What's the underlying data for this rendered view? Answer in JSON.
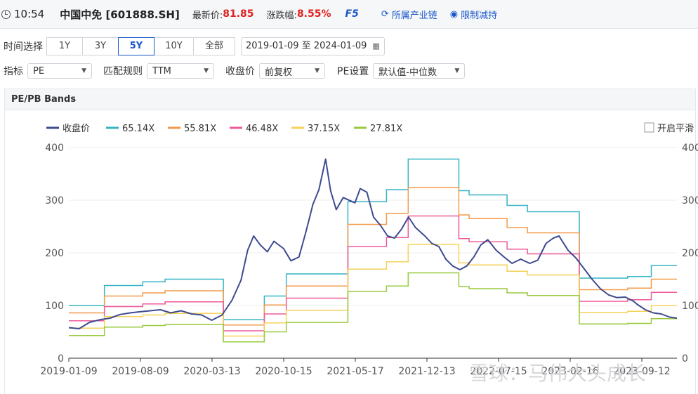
{
  "header": {
    "time": "10:54",
    "stock": "中国中免 [601888.SH]",
    "latest_label": "最新价:",
    "latest_value": "81.85",
    "change_label": "涨跌幅:",
    "change_value": "8.55%",
    "f5": "F5",
    "link1": "所属产业链",
    "link2": "限制减持"
  },
  "controls": {
    "period_label": "时间选择",
    "periods": [
      "1Y",
      "3Y",
      "5Y",
      "10Y",
      "全部"
    ],
    "period_selected": "5Y",
    "date_range": "2019-01-09 至 2024-01-09",
    "indicator_label": "指标",
    "indicator_value": "PE",
    "rule_label": "匹配规则",
    "rule_value": "TTM",
    "price_label": "收盘价",
    "price_value": "前复权",
    "pe_setting_label": "PE设置",
    "pe_setting_value": "默认值-中位数"
  },
  "panel": {
    "title": "PE/PB Bands",
    "smooth_label": "开启平滑"
  },
  "watermark": "雪球：马伟大头成长",
  "colors": {
    "price": "#3d4b8f",
    "b1": "#35b4c4",
    "b2": "#f39a4a",
    "b3": "#ef5a9a",
    "b4": "#f5d25a",
    "b5": "#98c93c",
    "accent": "#1a57c8",
    "up": "#e02020"
  },
  "chart_data": {
    "type": "line",
    "x_tick_labels": [
      "2019-01-09",
      "2019-08-09",
      "2020-03-13",
      "2020-10-15",
      "2021-05-17",
      "2021-12-13",
      "2022-07-15",
      "2023-02-16",
      "2023-09-12"
    ],
    "x_range": [
      "2019-01-09",
      "2024-01-09"
    ],
    "ylim": [
      0,
      400
    ],
    "y_ticks": [
      0,
      100,
      200,
      300,
      400
    ],
    "legend": [
      "收盘价",
      "65.14X",
      "55.81X",
      "46.48X",
      "37.15X",
      "27.81X"
    ],
    "legend_position": "top",
    "grid": "horizontal",
    "price_series": {
      "name": "收盘价",
      "points": [
        [
          "2019-01-09",
          58
        ],
        [
          "2019-02-09",
          56
        ],
        [
          "2019-03-12",
          68
        ],
        [
          "2019-04-12",
          73
        ],
        [
          "2019-05-13",
          76
        ],
        [
          "2019-06-12",
          83
        ],
        [
          "2019-07-12",
          86
        ],
        [
          "2019-08-09",
          88
        ],
        [
          "2019-09-10",
          90
        ],
        [
          "2019-10-11",
          92
        ],
        [
          "2019-11-11",
          86
        ],
        [
          "2019-12-12",
          90
        ],
        [
          "2020-01-13",
          84
        ],
        [
          "2020-02-12",
          82
        ],
        [
          "2020-03-13",
          72
        ],
        [
          "2020-04-13",
          82
        ],
        [
          "2020-05-13",
          110
        ],
        [
          "2020-06-09",
          148
        ],
        [
          "2020-06-29",
          205
        ],
        [
          "2020-07-17",
          232
        ],
        [
          "2020-08-06",
          215
        ],
        [
          "2020-08-27",
          202
        ],
        [
          "2020-09-16",
          222
        ],
        [
          "2020-10-15",
          208
        ],
        [
          "2020-11-06",
          185
        ],
        [
          "2020-11-30",
          192
        ],
        [
          "2020-12-21",
          240
        ],
        [
          "2021-01-11",
          292
        ],
        [
          "2021-01-29",
          320
        ],
        [
          "2021-02-18",
          378
        ],
        [
          "2021-03-05",
          318
        ],
        [
          "2021-03-22",
          282
        ],
        [
          "2021-04-12",
          305
        ],
        [
          "2021-05-17",
          295
        ],
        [
          "2021-06-02",
          322
        ],
        [
          "2021-06-22",
          315
        ],
        [
          "2021-07-12",
          268
        ],
        [
          "2021-08-02",
          252
        ],
        [
          "2021-08-23",
          232
        ],
        [
          "2021-09-13",
          228
        ],
        [
          "2021-10-04",
          245
        ],
        [
          "2021-10-25",
          268
        ],
        [
          "2021-11-15",
          248
        ],
        [
          "2021-12-13",
          232
        ],
        [
          "2022-01-03",
          218
        ],
        [
          "2022-01-24",
          212
        ],
        [
          "2022-02-14",
          188
        ],
        [
          "2022-03-07",
          175
        ],
        [
          "2022-03-28",
          168
        ],
        [
          "2022-04-18",
          175
        ],
        [
          "2022-05-09",
          192
        ],
        [
          "2022-05-30",
          215
        ],
        [
          "2022-06-20",
          225
        ],
        [
          "2022-07-15",
          205
        ],
        [
          "2022-08-08",
          192
        ],
        [
          "2022-09-01",
          180
        ],
        [
          "2022-09-27",
          188
        ],
        [
          "2022-10-24",
          180
        ],
        [
          "2022-11-17",
          186
        ],
        [
          "2022-12-12",
          218
        ],
        [
          "2023-01-03",
          228
        ],
        [
          "2023-01-20",
          232
        ],
        [
          "2023-02-16",
          205
        ],
        [
          "2023-03-12",
          190
        ],
        [
          "2023-04-05",
          170
        ],
        [
          "2023-04-29",
          150
        ],
        [
          "2023-05-24",
          132
        ],
        [
          "2023-06-18",
          120
        ],
        [
          "2023-07-13",
          115
        ],
        [
          "2023-08-07",
          116
        ],
        [
          "2023-09-01",
          108
        ],
        [
          "2023-09-12",
          102
        ],
        [
          "2023-10-06",
          92
        ],
        [
          "2023-10-30",
          86
        ],
        [
          "2023-11-23",
          84
        ],
        [
          "2023-12-18",
          78
        ],
        [
          "2024-01-09",
          76
        ]
      ]
    },
    "band_dates": [
      "2019-01-09",
      "2019-04-26",
      "2019-08-19",
      "2019-10-25",
      "2020-04-17",
      "2020-08-18",
      "2020-10-23",
      "2021-04-26",
      "2021-08-20",
      "2021-10-24",
      "2022-03-25",
      "2022-04-25",
      "2022-08-17",
      "2022-10-17",
      "2023-03-22",
      "2023-04-11",
      "2023-08-14",
      "2023-10-24",
      "2024-01-09"
    ],
    "bands": [
      {
        "name": "65.14X",
        "values": [
          100,
          138,
          145,
          150,
          73,
          118,
          160,
          297,
          320,
          378,
          318,
          310,
          290,
          278,
          152,
          152,
          155,
          176,
          176
        ]
      },
      {
        "name": "55.81X",
        "values": [
          86,
          118,
          124,
          128,
          63,
          101,
          137,
          254,
          275,
          324,
          272,
          265,
          248,
          238,
          130,
          130,
          133,
          150,
          150
        ]
      },
      {
        "name": "46.48X",
        "values": [
          71,
          98,
          103,
          107,
          52,
          84,
          114,
          212,
          229,
          270,
          227,
          221,
          207,
          198,
          108,
          108,
          111,
          125,
          125
        ]
      },
      {
        "name": "37.15X",
        "values": [
          57,
          79,
          82,
          85,
          42,
          67,
          91,
          169,
          183,
          216,
          181,
          177,
          165,
          158,
          87,
          87,
          89,
          100,
          100
        ]
      },
      {
        "name": "27.81X",
        "values": [
          43,
          59,
          62,
          64,
          31,
          50,
          68,
          127,
          137,
          162,
          136,
          132,
          124,
          119,
          65,
          65,
          66,
          75,
          75
        ]
      }
    ]
  }
}
